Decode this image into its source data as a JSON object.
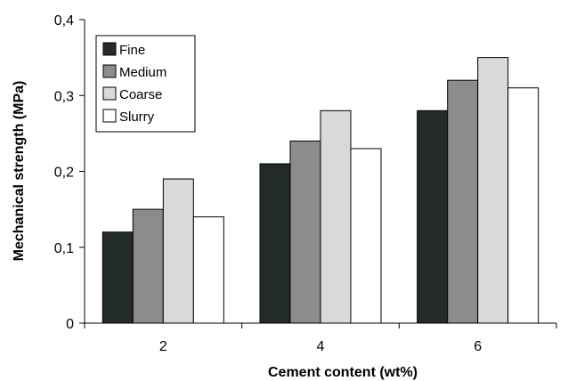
{
  "chart_data": {
    "type": "bar",
    "title": "",
    "xlabel": "Cement content (wt%)",
    "ylabel": "Mechanical strength (MPa)",
    "categories": [
      "2",
      "4",
      "6"
    ],
    "series": [
      {
        "name": "Fine",
        "values": [
          0.12,
          0.21,
          0.28
        ],
        "color": "#222a2a"
      },
      {
        "name": "Medium",
        "values": [
          0.15,
          0.24,
          0.32
        ],
        "color": "#8c8c8c"
      },
      {
        "name": "Coarse",
        "values": [
          0.19,
          0.28,
          0.35
        ],
        "color": "#d9d9d9"
      },
      {
        "name": "Slurry",
        "values": [
          0.14,
          0.23,
          0.31
        ],
        "color": "#ffffff"
      }
    ],
    "ylim": [
      0,
      0.4
    ],
    "yticks": [
      0,
      0.1,
      0.2,
      0.3,
      0.4
    ],
    "ytick_labels": [
      "0",
      "0,1",
      "0,2",
      "0,3",
      "0,4"
    ],
    "grid": false,
    "legend_position": "top-left"
  }
}
